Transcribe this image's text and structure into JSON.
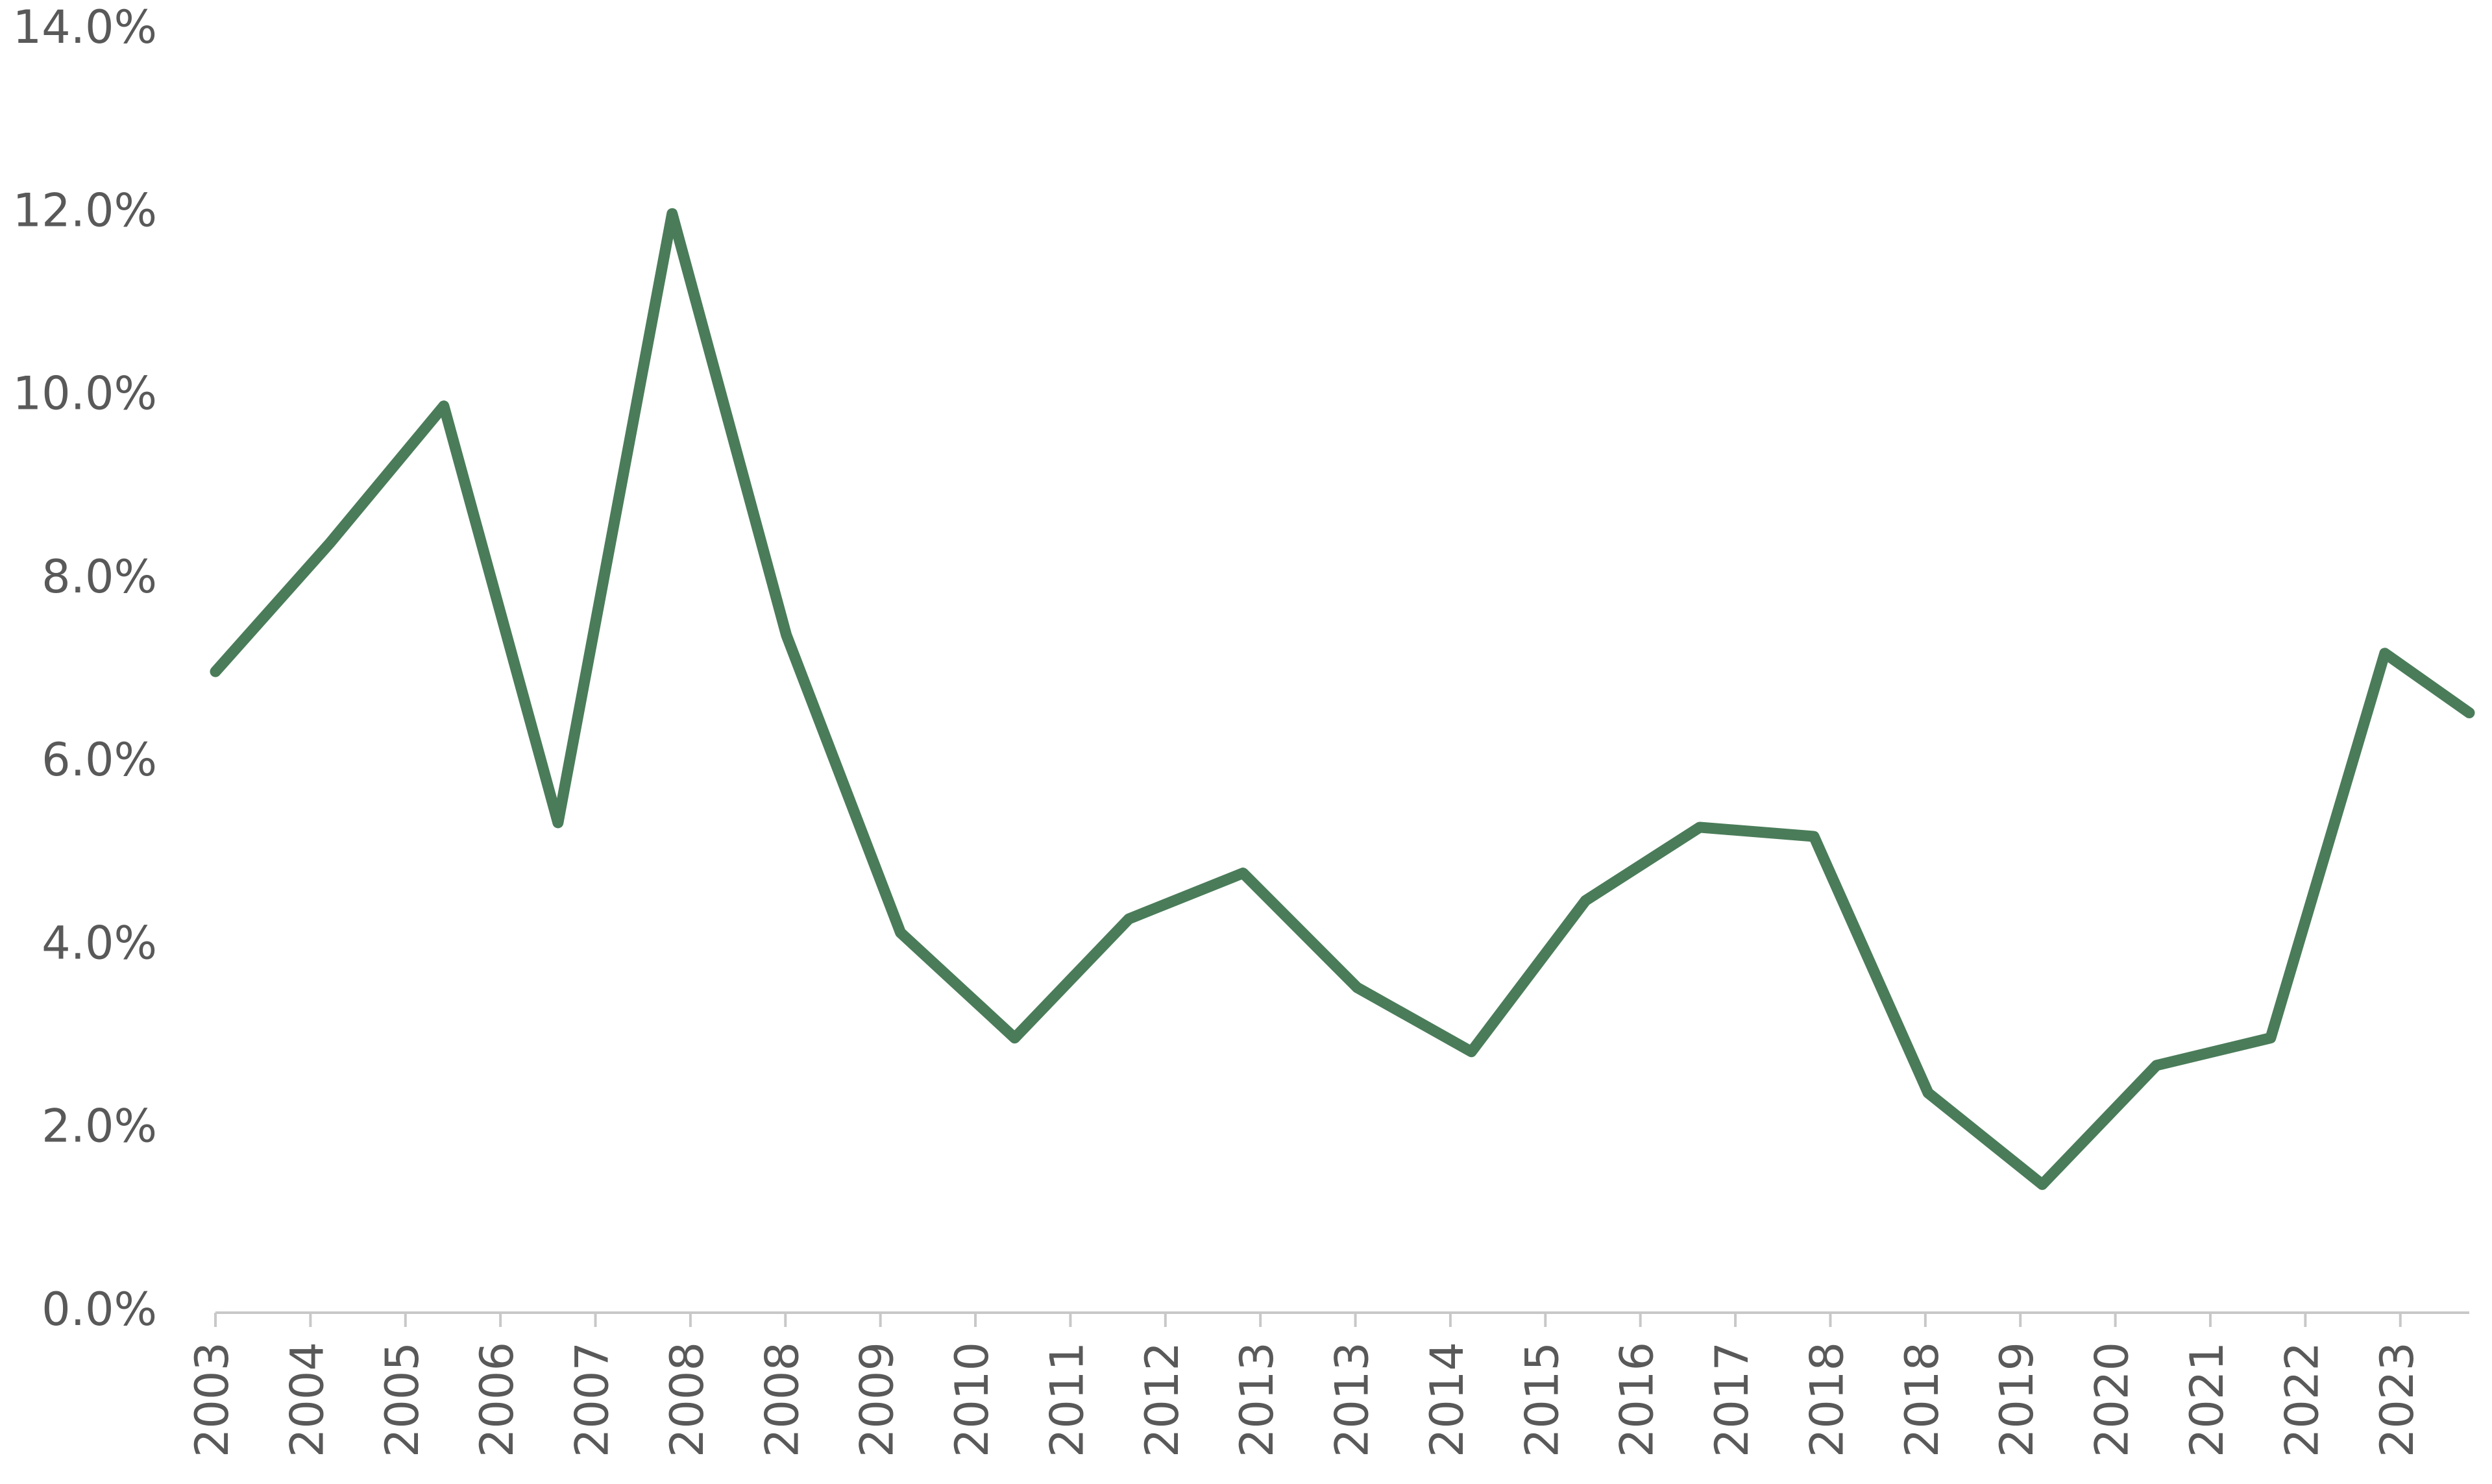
{
  "chart_data": {
    "type": "line",
    "x": [
      2003,
      2004,
      2005,
      2006,
      2007,
      2008,
      2009,
      2010,
      2011,
      2012,
      2013,
      2014,
      2015,
      2016,
      2017,
      2018,
      2019,
      2020,
      2021,
      2022,
      2022.74
    ],
    "series": [
      {
        "color": "#4a7c59",
        "values": [
          7.0,
          8.4,
          9.9,
          5.35,
          12.0,
          7.4,
          4.15,
          3.0,
          4.3,
          4.8,
          3.55,
          2.85,
          4.5,
          5.3,
          5.2,
          2.4,
          1.4,
          2.7,
          3.0,
          7.2,
          6.55
        ]
      }
    ],
    "xlim": [
      2003,
      2022.74
    ],
    "xticks": [
      {
        "value": 2003,
        "label": "2003"
      },
      {
        "value": 2003.832,
        "label": "2004"
      },
      {
        "value": 2004.664,
        "label": "2005"
      },
      {
        "value": 2005.496,
        "label": "2006"
      },
      {
        "value": 2006.328,
        "label": "2007"
      },
      {
        "value": 2007.16,
        "label": "2008"
      },
      {
        "value": 2007.992,
        "label": "2008"
      },
      {
        "value": 2008.824,
        "label": "2009"
      },
      {
        "value": 2009.656,
        "label": "2010"
      },
      {
        "value": 2010.488,
        "label": "2011"
      },
      {
        "value": 2011.32,
        "label": "2012"
      },
      {
        "value": 2012.152,
        "label": "2013"
      },
      {
        "value": 2012.984,
        "label": "2013"
      },
      {
        "value": 2013.816,
        "label": "2014"
      },
      {
        "value": 2014.648,
        "label": "2015"
      },
      {
        "value": 2015.48,
        "label": "2016"
      },
      {
        "value": 2016.312,
        "label": "2017"
      },
      {
        "value": 2017.144,
        "label": "2018"
      },
      {
        "value": 2017.976,
        "label": "2018"
      },
      {
        "value": 2018.808,
        "label": "2019"
      },
      {
        "value": 2019.64,
        "label": "2020"
      },
      {
        "value": 2020.472,
        "label": "2021"
      },
      {
        "value": 2021.304,
        "label": "2022"
      },
      {
        "value": 2022.136,
        "label": "2023"
      }
    ],
    "ylim": [
      0,
      14
    ],
    "yticks": [
      {
        "value": 0,
        "label": "0.0%"
      },
      {
        "value": 2,
        "label": "2.0%"
      },
      {
        "value": 4,
        "label": "4.0%"
      },
      {
        "value": 6,
        "label": "6.0%"
      },
      {
        "value": 8,
        "label": "8.0%"
      },
      {
        "value": 10,
        "label": "10.0%"
      },
      {
        "value": 12,
        "label": "12.0%"
      },
      {
        "value": 14,
        "label": "14.0%"
      }
    ],
    "grid": false
  }
}
